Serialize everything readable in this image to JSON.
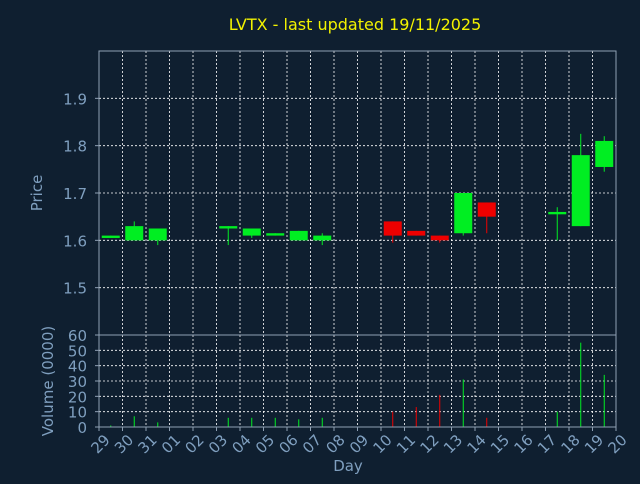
{
  "title": "LVTX - last updated 19/11/2025",
  "colors": {
    "background": "#0f1f30",
    "axis": "#8fa0b4",
    "title": "#f2f200",
    "label": "#7f9fbf",
    "grid": "#ffffff",
    "up": "#00ee22",
    "down": "#ee0000"
  },
  "chart_data": [
    {
      "type": "candlestick",
      "ylabel": "Price",
      "ylim": [
        1.4,
        2.0
      ],
      "yticks": [
        1.5,
        1.6,
        1.7,
        1.8,
        1.9
      ],
      "grid": true,
      "x": [
        "29",
        "30",
        "31",
        "01",
        "02",
        "03",
        "04",
        "05",
        "06",
        "07",
        "08",
        "09",
        "10",
        "11",
        "12",
        "13",
        "14",
        "15",
        "16",
        "17",
        "18",
        "19",
        "20"
      ],
      "candles": [
        {
          "day": "29",
          "open": 1.605,
          "high": 1.61,
          "low": 1.605,
          "close": 1.61
        },
        {
          "day": "30",
          "open": 1.6,
          "high": 1.64,
          "low": 1.6,
          "close": 1.63
        },
        {
          "day": "31",
          "open": 1.6,
          "high": 1.625,
          "low": 1.59,
          "close": 1.625
        },
        {
          "day": "03",
          "open": 1.625,
          "high": 1.63,
          "low": 1.59,
          "close": 1.63
        },
        {
          "day": "04",
          "open": 1.61,
          "high": 1.625,
          "low": 1.605,
          "close": 1.625
        },
        {
          "day": "05",
          "open": 1.61,
          "high": 1.615,
          "low": 1.61,
          "close": 1.615
        },
        {
          "day": "06",
          "open": 1.6,
          "high": 1.62,
          "low": 1.6,
          "close": 1.62
        },
        {
          "day": "07",
          "open": 1.6,
          "high": 1.615,
          "low": 1.59,
          "close": 1.61
        },
        {
          "day": "10",
          "open": 1.64,
          "high": 1.64,
          "low": 1.595,
          "close": 1.61
        },
        {
          "day": "11",
          "open": 1.62,
          "high": 1.62,
          "low": 1.61,
          "close": 1.61
        },
        {
          "day": "12",
          "open": 1.61,
          "high": 1.61,
          "low": 1.595,
          "close": 1.6
        },
        {
          "day": "13",
          "open": 1.615,
          "high": 1.7,
          "low": 1.61,
          "close": 1.7
        },
        {
          "day": "14",
          "open": 1.68,
          "high": 1.68,
          "low": 1.615,
          "close": 1.65
        },
        {
          "day": "17",
          "open": 1.655,
          "high": 1.67,
          "low": 1.6,
          "close": 1.66
        },
        {
          "day": "18",
          "open": 1.63,
          "high": 1.825,
          "low": 1.63,
          "close": 1.78
        },
        {
          "day": "19",
          "open": 1.755,
          "high": 1.82,
          "low": 1.745,
          "close": 1.81
        }
      ]
    },
    {
      "type": "bar",
      "ylabel": "Volume (0000)",
      "xlabel": "Day",
      "ylim": [
        0,
        60
      ],
      "yticks": [
        0,
        10,
        20,
        30,
        40,
        50,
        60
      ],
      "grid": true,
      "x": [
        "29",
        "30",
        "31",
        "01",
        "02",
        "03",
        "04",
        "05",
        "06",
        "07",
        "08",
        "09",
        "10",
        "11",
        "12",
        "13",
        "14",
        "15",
        "16",
        "17",
        "18",
        "19",
        "20"
      ],
      "bars": [
        {
          "day": "29",
          "value": 1,
          "direction": "up"
        },
        {
          "day": "30",
          "value": 7,
          "direction": "up"
        },
        {
          "day": "31",
          "value": 3,
          "direction": "up"
        },
        {
          "day": "03",
          "value": 6,
          "direction": "up"
        },
        {
          "day": "04",
          "value": 6,
          "direction": "up"
        },
        {
          "day": "05",
          "value": 6,
          "direction": "up"
        },
        {
          "day": "06",
          "value": 5,
          "direction": "up"
        },
        {
          "day": "07",
          "value": 6,
          "direction": "up"
        },
        {
          "day": "10",
          "value": 10,
          "direction": "down"
        },
        {
          "day": "11",
          "value": 13,
          "direction": "down"
        },
        {
          "day": "12",
          "value": 21,
          "direction": "down"
        },
        {
          "day": "13",
          "value": 31,
          "direction": "up"
        },
        {
          "day": "14",
          "value": 6,
          "direction": "down"
        },
        {
          "day": "17",
          "value": 10,
          "direction": "up"
        },
        {
          "day": "18",
          "value": 55,
          "direction": "up"
        },
        {
          "day": "19",
          "value": 34,
          "direction": "up"
        }
      ]
    }
  ]
}
